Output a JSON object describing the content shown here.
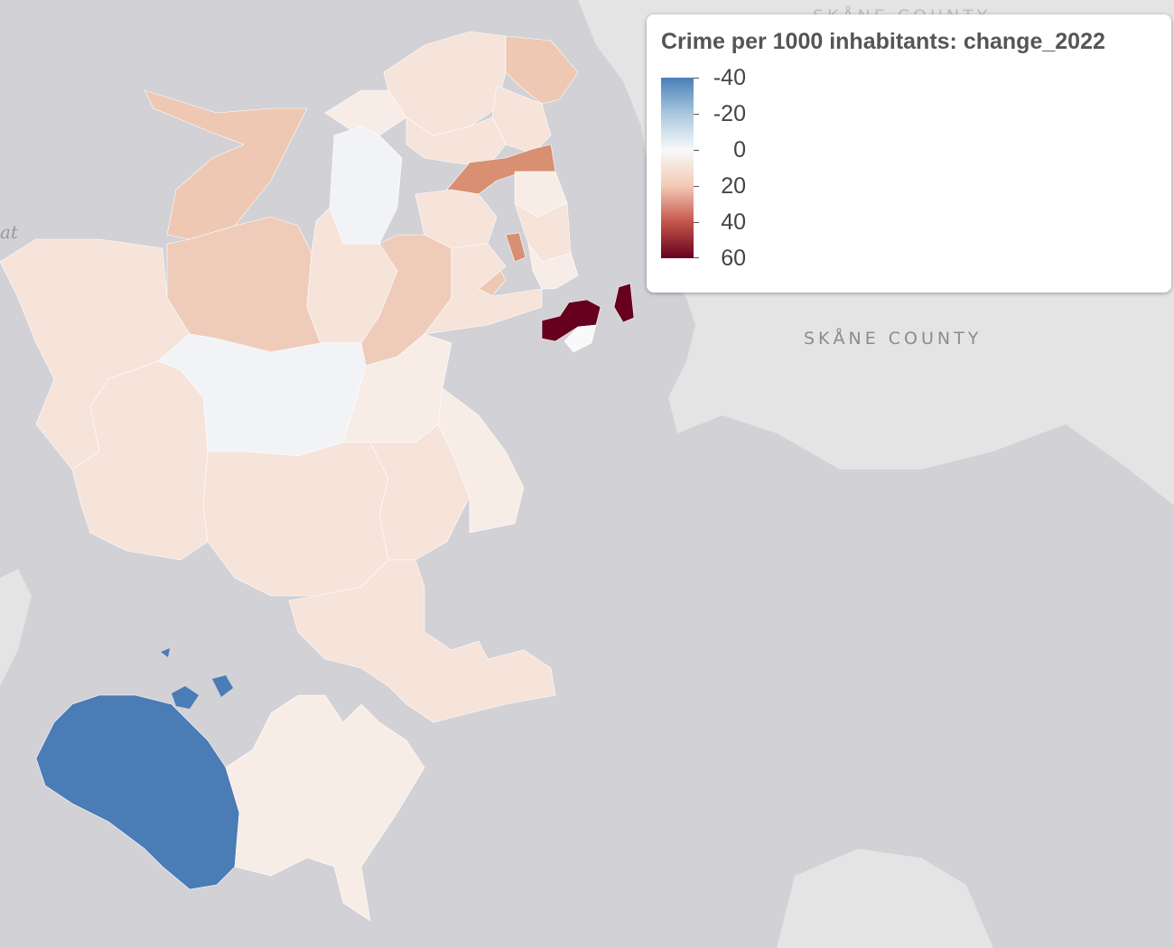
{
  "map": {
    "sea_label": "at",
    "region_labels": [
      "SKÅNE COUNTY",
      "SKÅNE COUNTY"
    ]
  },
  "legend": {
    "title": "Crime per 1000 inhabitants: change_2022",
    "ticks": [
      "-40",
      "-20",
      "0",
      "20",
      "40",
      "60"
    ],
    "scale": {
      "min": -40,
      "max": 60,
      "colors": [
        "#4a7fb8",
        "#a9c8e0",
        "#f9f9f9",
        "#f3cab5",
        "#c4554a",
        "#67001f"
      ]
    }
  },
  "colors": {
    "water": "#d1d1d6",
    "land_other": "#e4e4e4",
    "choropleth_slight_positive": "#f6e3da",
    "choropleth_positive": "#efccba",
    "choropleth_medium_positive": "#d88f72",
    "choropleth_high_positive": "#67001f",
    "choropleth_negative": "#4a7cb5",
    "choropleth_neutral": "#f2f3f6"
  }
}
